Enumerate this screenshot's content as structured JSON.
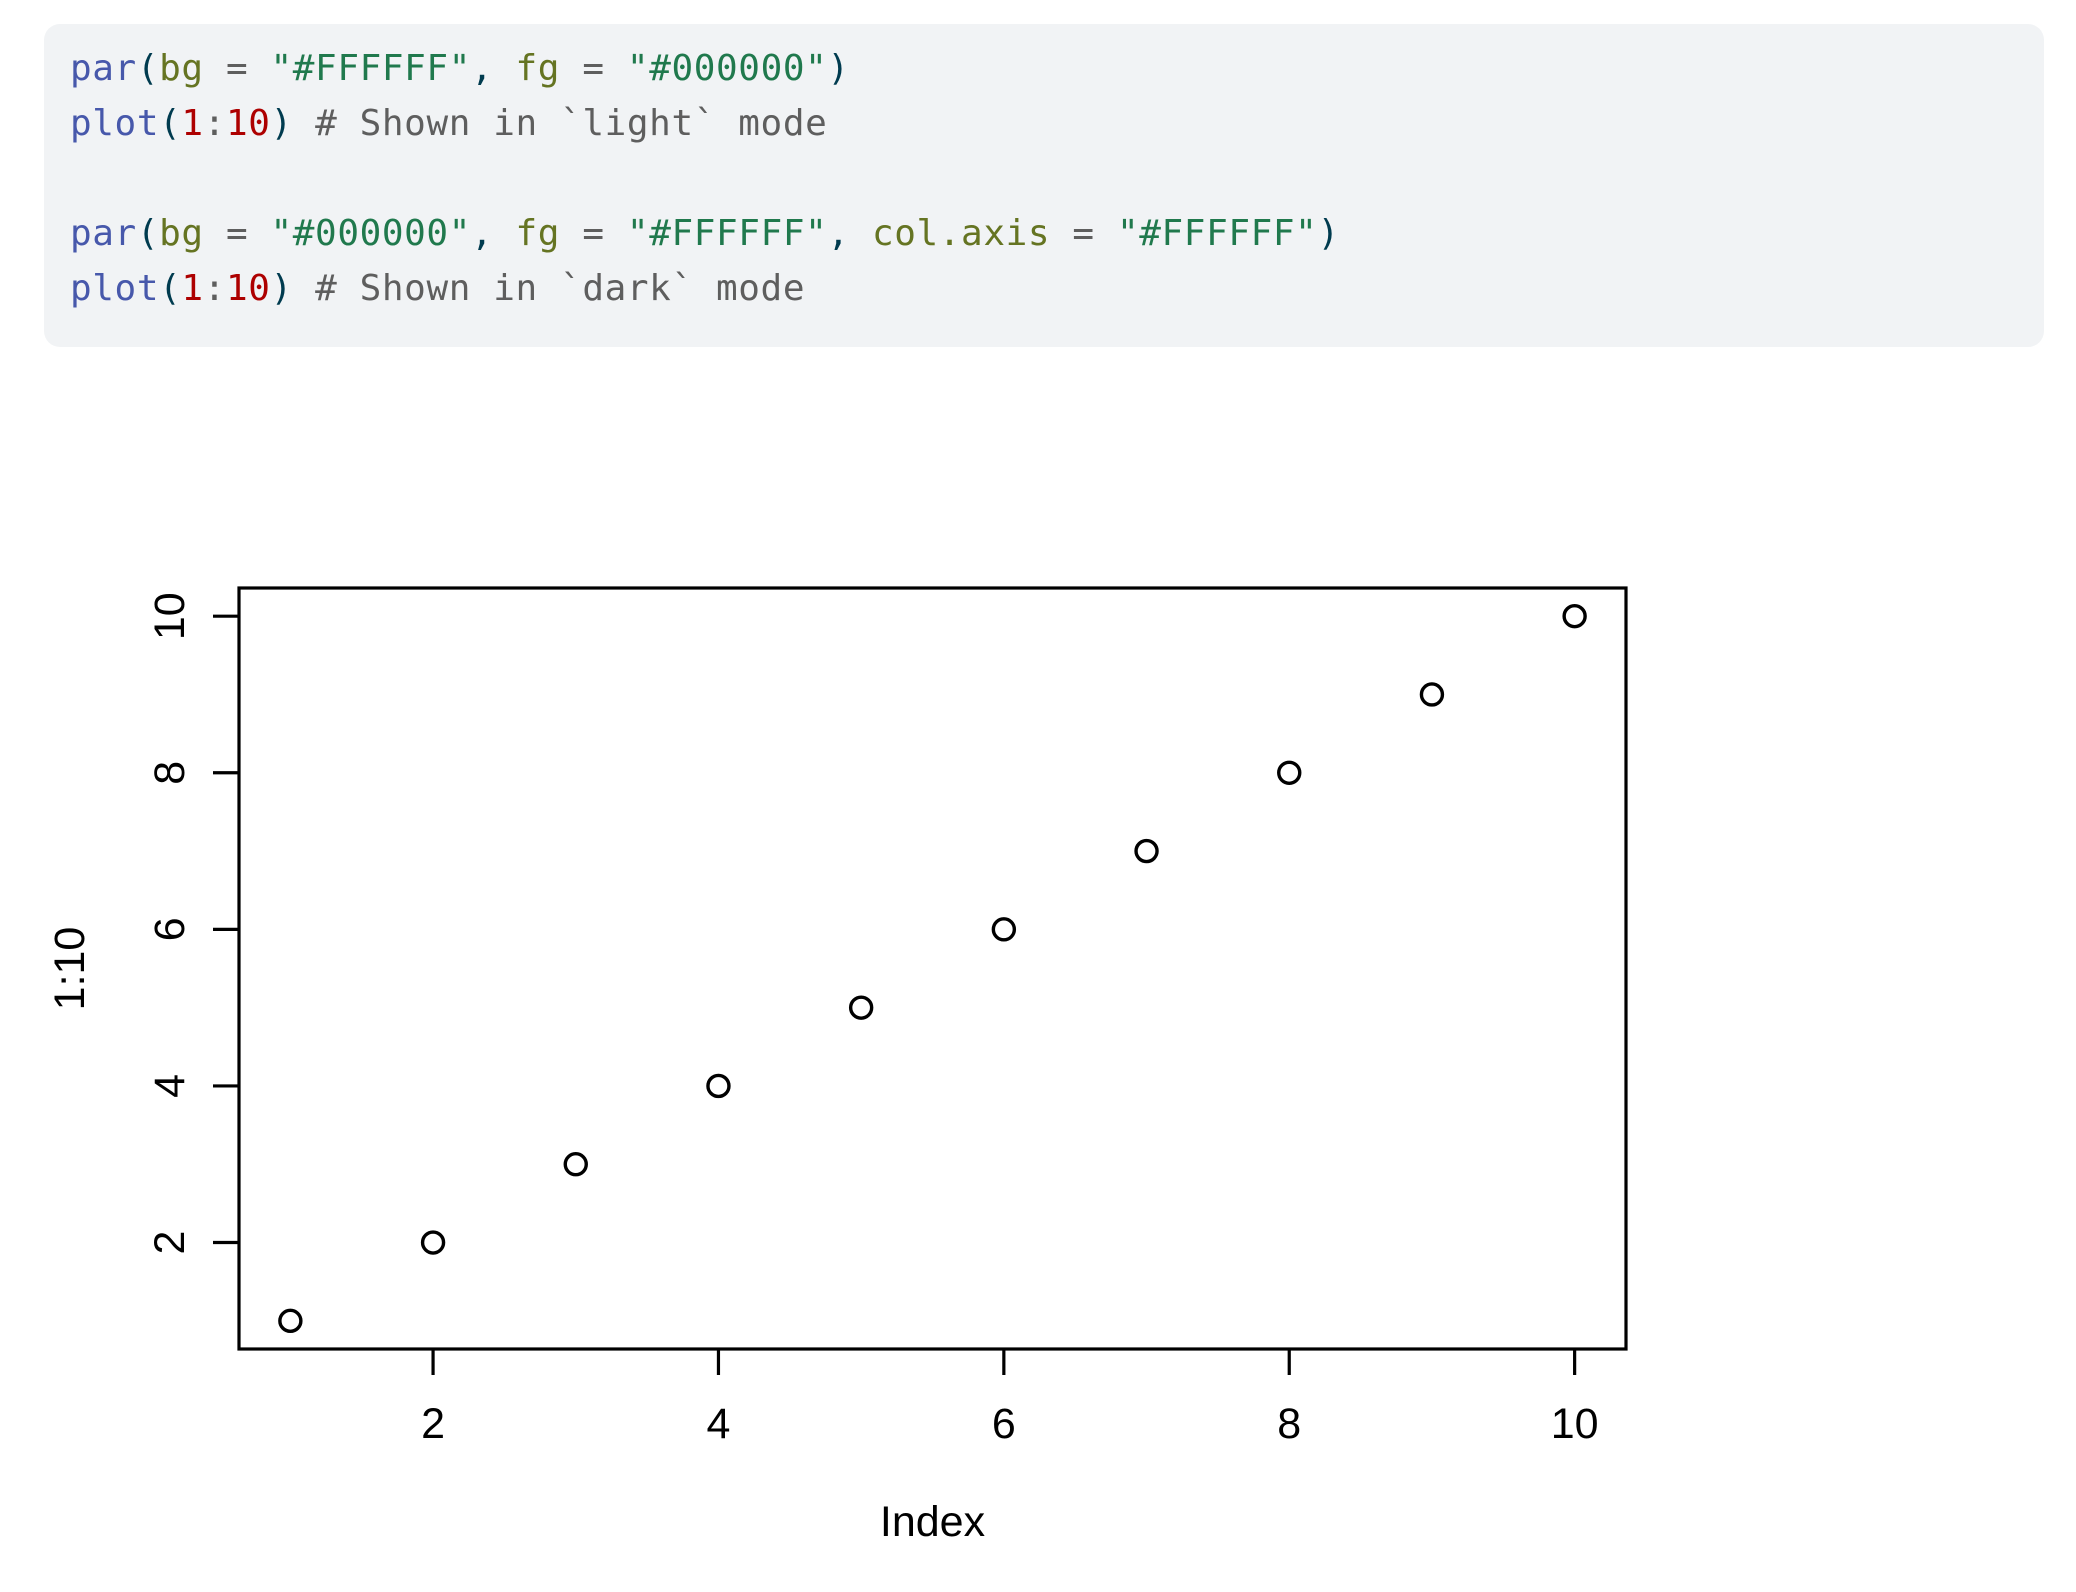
{
  "page": {
    "background": "#FFFFFF"
  },
  "code_block": {
    "background": "#F1F3F5",
    "default_text_color": "#003B4F",
    "palette": {
      "function": "#4758AB",
      "attribute": "#657422",
      "string": "#20794D",
      "number": "#AD0000",
      "operator": "#5E5E5E",
      "comment": "#5E5E5E",
      "punct": "#003B4F"
    },
    "lines": [
      [
        {
          "t": "par",
          "y": "function"
        },
        {
          "t": "(",
          "y": "punct"
        },
        {
          "t": "bg",
          "y": "attribute"
        },
        {
          "t": " = ",
          "y": "operator"
        },
        {
          "t": "\"#FFFFFF\"",
          "y": "string"
        },
        {
          "t": ", ",
          "y": "punct"
        },
        {
          "t": "fg",
          "y": "attribute"
        },
        {
          "t": " = ",
          "y": "operator"
        },
        {
          "t": "\"#000000\"",
          "y": "string"
        },
        {
          "t": ")",
          "y": "punct"
        }
      ],
      [
        {
          "t": "plot",
          "y": "function"
        },
        {
          "t": "(",
          "y": "punct"
        },
        {
          "t": "1",
          "y": "number"
        },
        {
          "t": ":",
          "y": "operator"
        },
        {
          "t": "10",
          "y": "number"
        },
        {
          "t": ")",
          "y": "punct"
        },
        {
          "t": " ",
          "y": "punct"
        },
        {
          "t": "# Shown in `light` mode",
          "y": "comment"
        }
      ],
      [],
      [
        {
          "t": "par",
          "y": "function"
        },
        {
          "t": "(",
          "y": "punct"
        },
        {
          "t": "bg",
          "y": "attribute"
        },
        {
          "t": " = ",
          "y": "operator"
        },
        {
          "t": "\"#000000\"",
          "y": "string"
        },
        {
          "t": ", ",
          "y": "punct"
        },
        {
          "t": "fg",
          "y": "attribute"
        },
        {
          "t": " = ",
          "y": "operator"
        },
        {
          "t": "\"#FFFFFF\"",
          "y": "string"
        },
        {
          "t": ", ",
          "y": "punct"
        },
        {
          "t": "col.axis",
          "y": "attribute"
        },
        {
          "t": " = ",
          "y": "operator"
        },
        {
          "t": "\"#FFFFFF\"",
          "y": "string"
        },
        {
          "t": ")",
          "y": "punct"
        }
      ],
      [
        {
          "t": "plot",
          "y": "function"
        },
        {
          "t": "(",
          "y": "punct"
        },
        {
          "t": "1",
          "y": "number"
        },
        {
          "t": ":",
          "y": "operator"
        },
        {
          "t": "10",
          "y": "number"
        },
        {
          "t": ")",
          "y": "punct"
        },
        {
          "t": " ",
          "y": "punct"
        },
        {
          "t": "# Shown in `dark` mode",
          "y": "comment"
        }
      ]
    ]
  },
  "chart_data": {
    "type": "scatter",
    "title": "",
    "xlabel": "Index",
    "ylabel": "1:10",
    "x": [
      1,
      2,
      3,
      4,
      5,
      6,
      7,
      8,
      9,
      10
    ],
    "y": [
      1,
      2,
      3,
      4,
      5,
      6,
      7,
      8,
      9,
      10
    ],
    "xlim": [
      0.64,
      10.36
    ],
    "ylim": [
      0.64,
      10.36
    ],
    "xticks": [
      2,
      4,
      6,
      8,
      10
    ],
    "yticks": [
      2,
      4,
      6,
      8,
      10
    ],
    "grid": false,
    "legend": "none",
    "point_marker": "open-circle",
    "plot_bg": "#FFFFFF",
    "axis_color": "#000000"
  }
}
